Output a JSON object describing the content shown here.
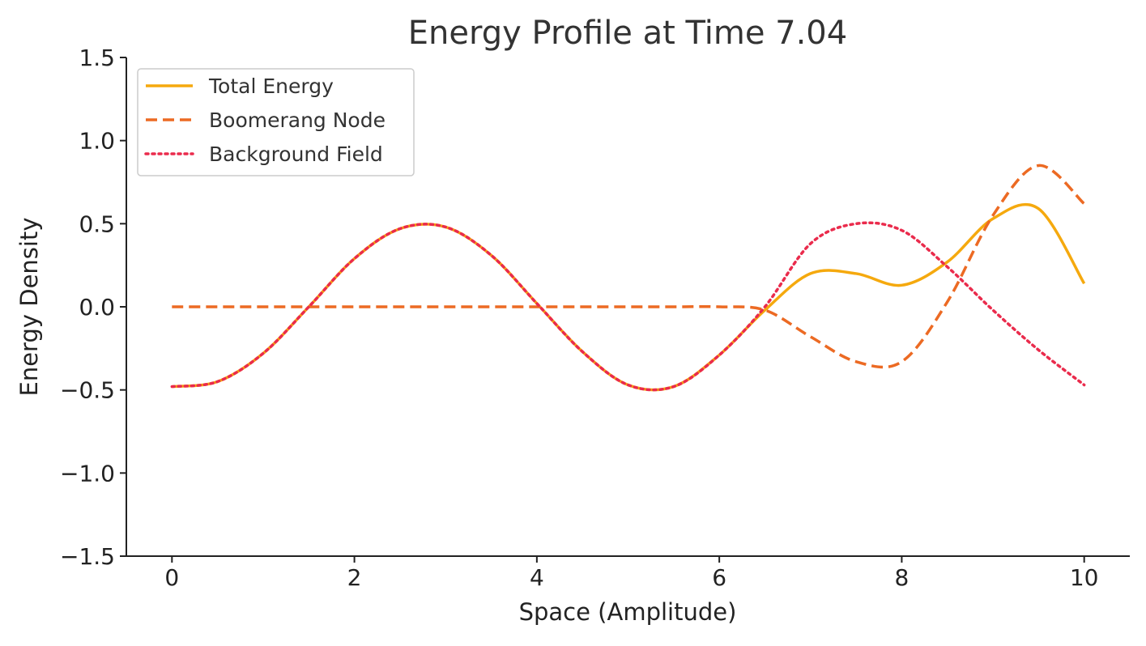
{
  "chart_data": {
    "type": "line",
    "title": "Energy Profile at Time 7.04",
    "xlabel": "Space (Amplitude)",
    "ylabel": "Energy Density",
    "xlim": [
      -0.5,
      10.5
    ],
    "ylim": [
      -1.5,
      1.5
    ],
    "xticks": [
      0,
      2,
      4,
      6,
      8,
      10
    ],
    "xtick_labels": [
      "0",
      "2",
      "4",
      "6",
      "8",
      "10"
    ],
    "yticks": [
      -1.5,
      -1.0,
      -0.5,
      0.0,
      0.5,
      1.0,
      1.5
    ],
    "ytick_labels": [
      "−1.5",
      "−1.0",
      "−0.5",
      "0.0",
      "0.5",
      "1.0",
      "1.5"
    ],
    "grid": false,
    "legend_position": "top-left",
    "x": [
      0,
      0.5,
      1,
      1.5,
      2,
      2.5,
      3,
      3.5,
      4,
      4.5,
      5,
      5.5,
      6,
      6.5,
      7,
      7.5,
      8,
      8.5,
      9,
      9.5,
      10
    ],
    "series": [
      {
        "name": "Total Energy",
        "color": "#F5A90E",
        "style": "solid",
        "values": [
          -0.48,
          -0.45,
          -0.28,
          0.0,
          0.29,
          0.47,
          0.48,
          0.31,
          0.02,
          -0.27,
          -0.47,
          -0.48,
          -0.29,
          -0.02,
          0.2,
          0.2,
          0.13,
          0.27,
          0.53,
          0.59,
          0.14
        ]
      },
      {
        "name": "Boomerang Node",
        "color": "#EC6A23",
        "style": "dashed",
        "values": [
          0.0,
          0.0,
          0.0,
          0.0,
          0.0,
          0.0,
          0.0,
          0.0,
          0.0,
          0.0,
          0.0,
          0.0,
          0.0,
          -0.02,
          -0.18,
          -0.33,
          -0.33,
          0.03,
          0.55,
          0.85,
          0.62
        ]
      },
      {
        "name": "Background Field",
        "color": "#EA2B4C",
        "style": "dotted",
        "values": [
          -0.48,
          -0.45,
          -0.28,
          0.0,
          0.29,
          0.47,
          0.48,
          0.31,
          0.02,
          -0.27,
          -0.47,
          -0.48,
          -0.29,
          0.0,
          0.38,
          0.5,
          0.46,
          0.24,
          -0.02,
          -0.26,
          -0.47
        ]
      }
    ]
  }
}
